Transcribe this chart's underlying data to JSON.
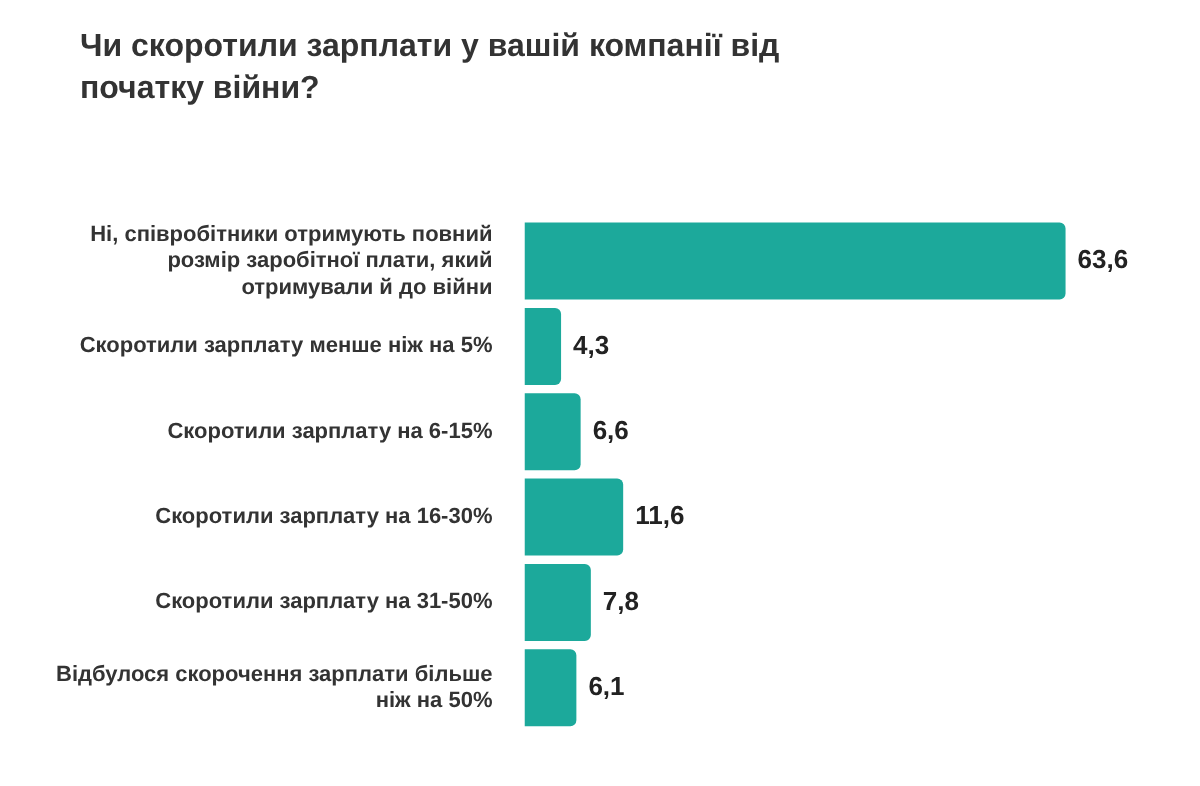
{
  "chart_data": {
    "type": "bar",
    "orientation": "horizontal",
    "title": "Чи скоротили зарплати у вашій компанії від початку війни?",
    "categories": [
      "Ні, співробітники отримують повний розмір заробітної плати, який отримували й до війни",
      "Скоротили зарплату менше ніж на 5%",
      "Скоротили зарплату на 6-15%",
      "Скоротили зарплату на 16-30%",
      "Скоротили зарплату на 31-50%",
      "Відбулося скорочення зарплати більше ніж на 50%"
    ],
    "values": [
      63.6,
      4.3,
      6.6,
      11.6,
      7.8,
      6.1
    ],
    "value_labels": [
      "63,6",
      "4,3",
      "6,6",
      "11,6",
      "7,8",
      "6,1"
    ],
    "color": "#1ca99b"
  }
}
